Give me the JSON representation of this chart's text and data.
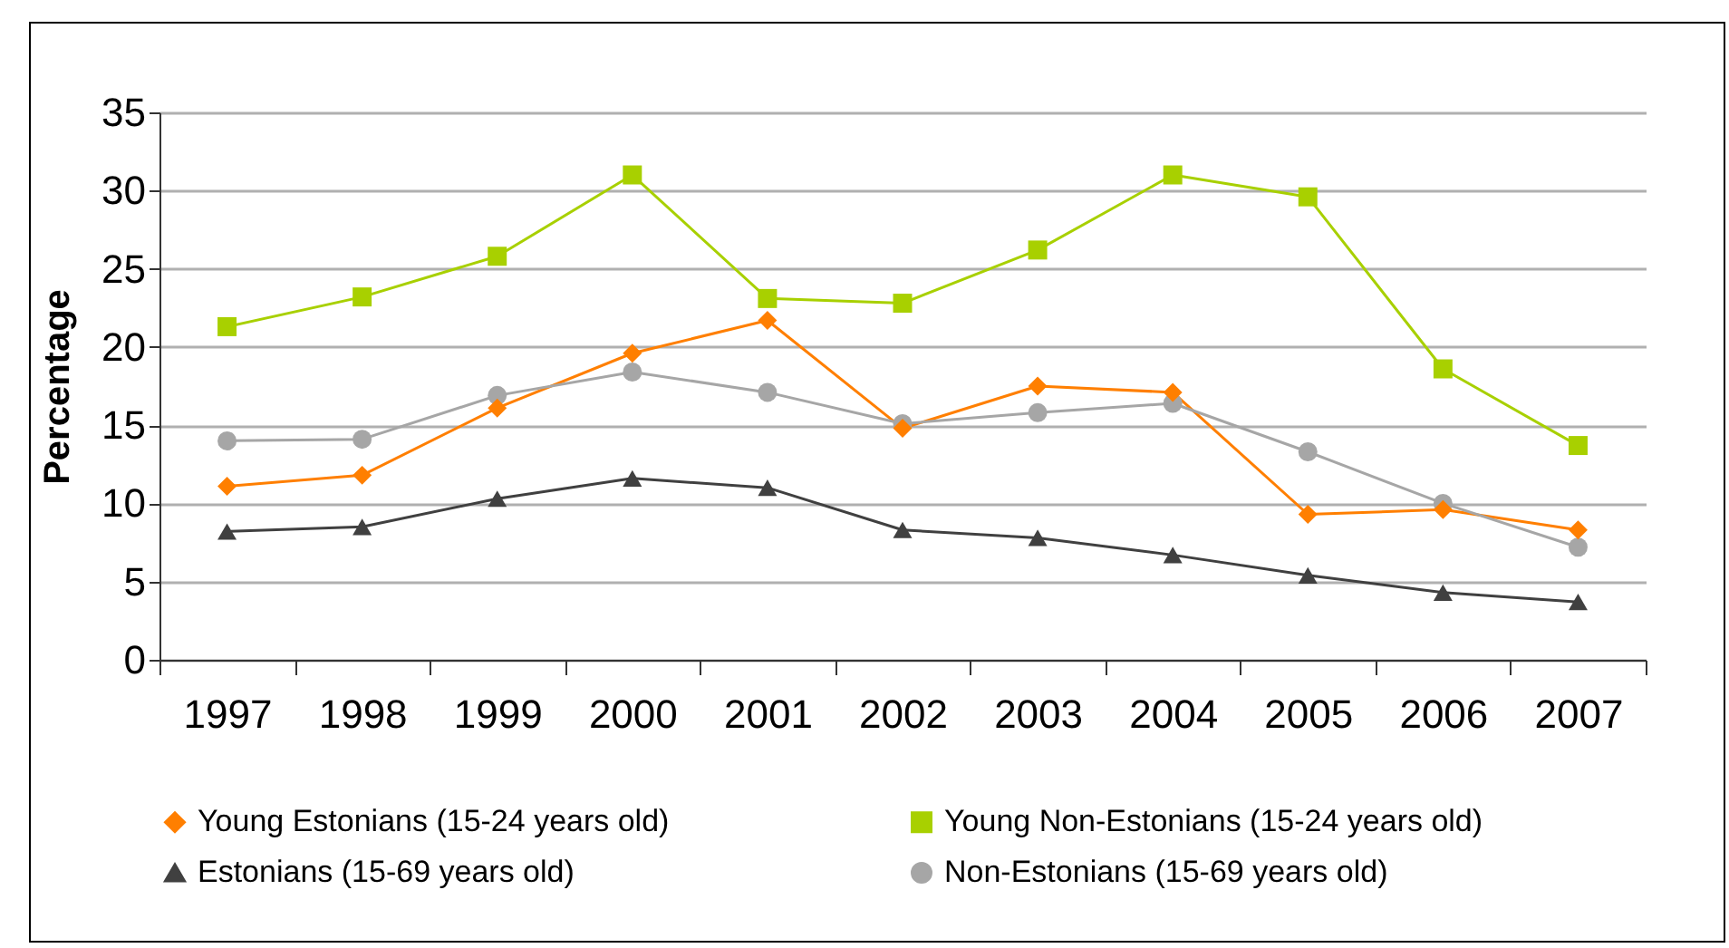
{
  "chart_data": {
    "type": "line",
    "ylabel": "Percentage",
    "categories": [
      "1997",
      "1998",
      "1999",
      "2000",
      "2001",
      "2002",
      "2003",
      "2004",
      "2005",
      "2006",
      "2007"
    ],
    "series": [
      {
        "name": "Young Estonians (15-24 years old)",
        "color": "#ff7f00",
        "marker": "diamond",
        "values": [
          11.1,
          11.8,
          16.1,
          19.6,
          21.7,
          14.8,
          17.5,
          17.1,
          9.3,
          9.6,
          8.3
        ]
      },
      {
        "name": "Young Non-Estonians (15-24 years old)",
        "color": "#a8d000",
        "marker": "square",
        "values": [
          21.3,
          23.2,
          25.8,
          31.0,
          23.1,
          22.8,
          26.2,
          31.0,
          29.6,
          18.6,
          13.7
        ]
      },
      {
        "name": "Estonians (15-69 years old)",
        "color": "#404040",
        "marker": "triangle",
        "values": [
          8.2,
          8.5,
          10.3,
          11.6,
          11.0,
          8.3,
          7.8,
          6.7,
          5.4,
          4.3,
          3.7
        ]
      },
      {
        "name": "Non-Estonians (15-69 years old)",
        "color": "#a6a6a6",
        "marker": "circle",
        "values": [
          14.0,
          14.1,
          16.9,
          18.4,
          17.1,
          15.1,
          15.8,
          16.4,
          13.3,
          10.0,
          7.2
        ]
      }
    ],
    "ylim": [
      0,
      35
    ],
    "yticks": [
      0,
      5,
      10,
      15,
      20,
      25,
      30,
      35
    ],
    "grid": "y",
    "legend": "bottom",
    "line_style": "solid"
  }
}
